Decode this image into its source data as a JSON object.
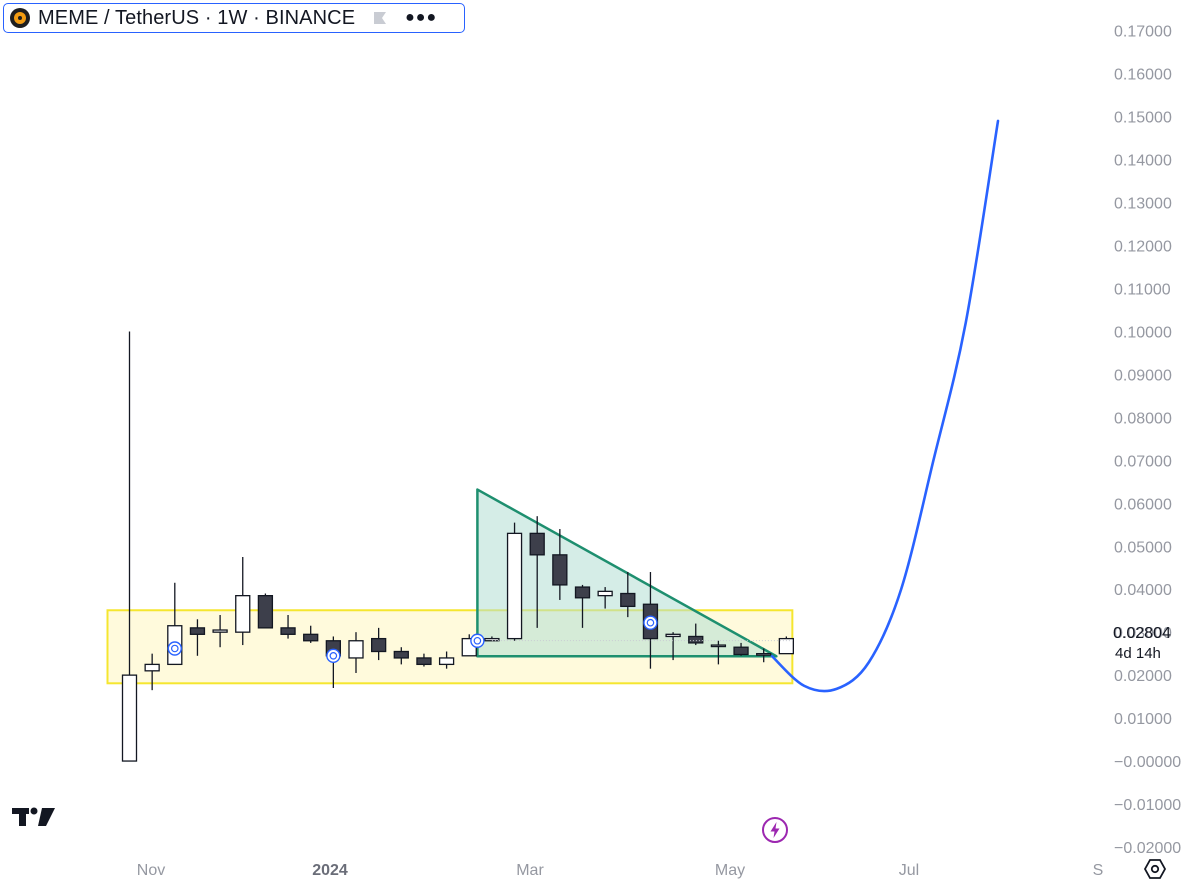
{
  "legend": {
    "title": "MEME / TetherUS · 1W · BINANCE",
    "logo_icon": "meme-coin-logo-icon",
    "flag_icon": "flag-icon",
    "more_icon": "more-dots-icon"
  },
  "last_price": {
    "value": "0.02804",
    "countdown": "4d 14h"
  },
  "colors": {
    "candle_up_fill": "#ffffff",
    "candle_down_fill": "#3d3f4b",
    "candle_border": "#131722",
    "range_box_fill": "#fff9d6",
    "range_box_border": "#f5e62f",
    "triangle_fill": "#b2dfd4",
    "triangle_border": "#1e8f6f",
    "projection_line": "#2962ff",
    "axis_text": "#9598a1",
    "lightning": "#9c27b0"
  },
  "icons": {
    "brand": "tradingview-logo-icon",
    "settings": "settings-hexagon-icon",
    "alert": "lightning-icon"
  },
  "chart_data": {
    "type": "candlestick",
    "symbol": "MEME / TetherUS",
    "interval": "1W",
    "exchange": "BINANCE",
    "x_ticks": [
      "Nov",
      "2024",
      "Mar",
      "May",
      "Jul",
      "S"
    ],
    "y_ticks": [
      "0.17000",
      "0.16000",
      "0.15000",
      "0.14000",
      "0.13000",
      "0.12000",
      "0.11000",
      "0.10000",
      "0.09000",
      "0.08000",
      "0.07000",
      "0.06000",
      "0.05000",
      "0.04000",
      "0.03000",
      "0.02000",
      "0.01000",
      "−0.00000",
      "−0.01000",
      "−0.02000"
    ],
    "ylim": [
      -0.0235,
      0.1725
    ],
    "candles": [
      {
        "open": 0.0,
        "high": 0.1,
        "low": 0.0,
        "close": 0.02
      },
      {
        "open": 0.021,
        "high": 0.025,
        "low": 0.0165,
        "close": 0.0225
      },
      {
        "open": 0.0225,
        "high": 0.0415,
        "low": 0.0225,
        "close": 0.0315
      },
      {
        "open": 0.031,
        "high": 0.033,
        "low": 0.0245,
        "close": 0.0295
      },
      {
        "open": 0.03,
        "high": 0.034,
        "low": 0.0265,
        "close": 0.0305
      },
      {
        "open": 0.03,
        "high": 0.0475,
        "low": 0.027,
        "close": 0.0385
      },
      {
        "open": 0.0385,
        "high": 0.039,
        "low": 0.031,
        "close": 0.031
      },
      {
        "open": 0.031,
        "high": 0.034,
        "low": 0.0285,
        "close": 0.0295
      },
      {
        "open": 0.0295,
        "high": 0.0315,
        "low": 0.0275,
        "close": 0.028
      },
      {
        "open": 0.028,
        "high": 0.029,
        "low": 0.017,
        "close": 0.0245
      },
      {
        "open": 0.024,
        "high": 0.03,
        "low": 0.0205,
        "close": 0.028
      },
      {
        "open": 0.0285,
        "high": 0.031,
        "low": 0.0235,
        "close": 0.0255
      },
      {
        "open": 0.0255,
        "high": 0.0265,
        "low": 0.0225,
        "close": 0.024
      },
      {
        "open": 0.024,
        "high": 0.025,
        "low": 0.022,
        "close": 0.0225
      },
      {
        "open": 0.0225,
        "high": 0.0255,
        "low": 0.0215,
        "close": 0.024
      },
      {
        "open": 0.0245,
        "high": 0.0295,
        "low": 0.0245,
        "close": 0.0285
      },
      {
        "open": 0.028,
        "high": 0.029,
        "low": 0.028,
        "close": 0.0285
      },
      {
        "open": 0.0285,
        "high": 0.0555,
        "low": 0.028,
        "close": 0.053
      },
      {
        "open": 0.053,
        "high": 0.057,
        "low": 0.031,
        "close": 0.048
      },
      {
        "open": 0.048,
        "high": 0.054,
        "low": 0.0375,
        "close": 0.041
      },
      {
        "open": 0.0405,
        "high": 0.041,
        "low": 0.031,
        "close": 0.038
      },
      {
        "open": 0.0385,
        "high": 0.0405,
        "low": 0.0355,
        "close": 0.0395
      },
      {
        "open": 0.039,
        "high": 0.044,
        "low": 0.0335,
        "close": 0.036
      },
      {
        "open": 0.0365,
        "high": 0.044,
        "low": 0.0215,
        "close": 0.0285
      },
      {
        "open": 0.029,
        "high": 0.03,
        "low": 0.0235,
        "close": 0.0295
      },
      {
        "open": 0.029,
        "high": 0.032,
        "low": 0.027,
        "close": 0.0275
      },
      {
        "open": 0.027,
        "high": 0.028,
        "low": 0.0225,
        "close": 0.027
      },
      {
        "open": 0.0265,
        "high": 0.0275,
        "low": 0.0245,
        "close": 0.0248
      },
      {
        "open": 0.025,
        "high": 0.0262,
        "low": 0.023,
        "close": 0.025
      },
      {
        "open": 0.025,
        "high": 0.029,
        "low": 0.025,
        "close": 0.0285
      }
    ],
    "annotations": {
      "range_box": {
        "from_candle": 0,
        "to_candle": 29,
        "top": 0.0351,
        "bottom": 0.0181
      },
      "descending_triangle": {
        "points": [
          [
            16,
            0.0632
          ],
          [
            16,
            0.0244
          ],
          [
            29,
            0.0244
          ]
        ]
      },
      "projection_curve": {
        "values": [
          0.0244,
          0.0175,
          0.0168,
          0.023,
          0.04,
          0.07,
          0.102,
          0.149
        ]
      },
      "markers": [
        {
          "candle": 2,
          "value": 0.0262
        },
        {
          "candle": 9,
          "value": 0.0245
        },
        {
          "candle": 16,
          "value": 0.028
        },
        {
          "candle": 23,
          "value": 0.0322
        }
      ]
    },
    "last_value": 0.02804
  }
}
